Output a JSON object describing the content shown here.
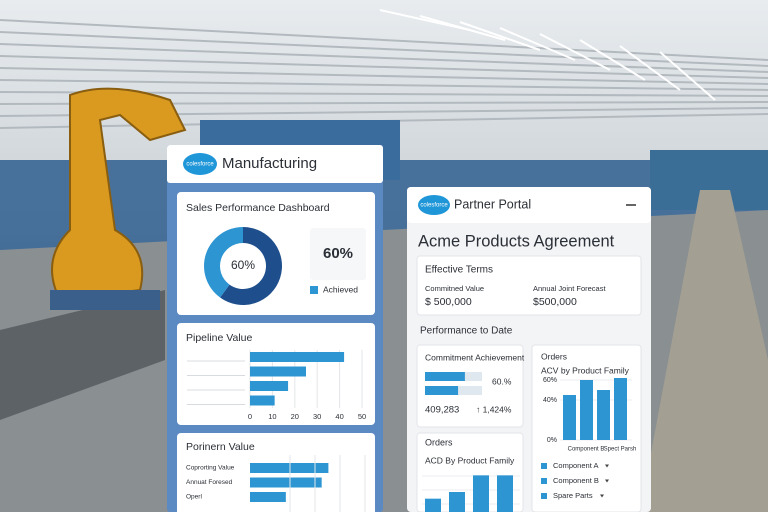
{
  "left_panel": {
    "logo": "colesforce",
    "title": "Manufacturing",
    "dashboard": {
      "title": "Sales Performance Dashboard",
      "donut_value": 60,
      "donut_label": "60%",
      "kpi": "60%",
      "legend": "Achieved"
    },
    "pipeline": {
      "title": "Pipeline Value",
      "values": [
        42,
        25,
        17,
        11
      ],
      "xlim": [
        0,
        50
      ],
      "xticks": [
        0,
        10,
        20,
        30,
        40,
        50
      ]
    },
    "partner": {
      "title": "Porinern Value",
      "categories": [
        "Coprorting Value",
        "Annuat Foresed",
        "Operl"
      ],
      "values": [
        35,
        32,
        16
      ],
      "xlim": [
        0,
        50
      ]
    }
  },
  "right_panel": {
    "logo": "colesforce",
    "title": "Partner Portal",
    "heading": "Acme Products Agreement",
    "effective_terms": {
      "title": "Effective Terms",
      "committed_label": "Commitned Value",
      "committed_value": "$ 500,000",
      "forecast_label": "Annual Joint Forecast",
      "forecast_value": "$500,000"
    },
    "performance_title": "Performance to Date",
    "commitment": {
      "title": "Commitment Achievement",
      "values": [
        70,
        58
      ],
      "xlim": [
        0,
        100
      ],
      "percent": "60.%",
      "count": "409,283",
      "change": "↑ 1,424%"
    },
    "orders": {
      "title": "Orders",
      "subtitle": "ACV by Product Family",
      "ylim": [
        0,
        80
      ],
      "yticks": [
        {
          "value": 0,
          "label": "0%"
        },
        {
          "value": 40,
          "label": "40%"
        },
        {
          "value": 60,
          "label": "60%"
        }
      ],
      "categories": [
        null,
        "Component B",
        null,
        "Spect Parsh"
      ],
      "values": [
        45,
        60,
        50,
        62
      ],
      "legend": [
        "Component A",
        "Component B",
        "Spare Parts"
      ]
    },
    "orders2": {
      "title": "Orders",
      "subtitle": "ACD By Product Family",
      "ylim": [
        0,
        60
      ],
      "values": [
        20,
        30,
        55,
        55
      ]
    }
  }
}
